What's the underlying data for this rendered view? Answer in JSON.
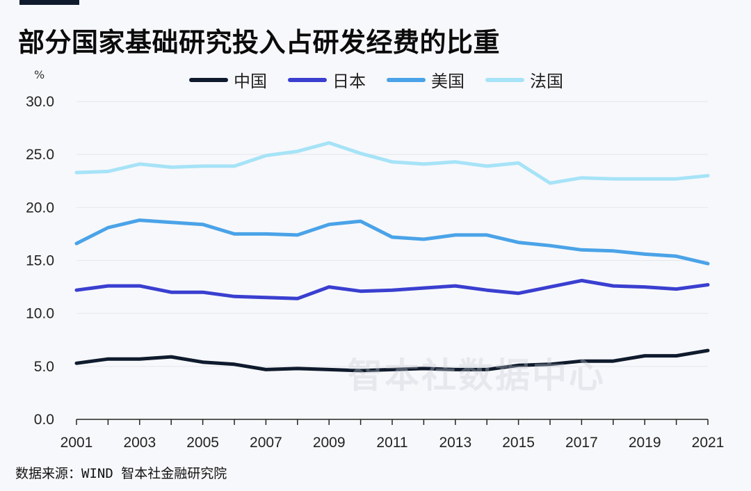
{
  "header": {
    "title": "部分国家基础研究投入占研发经费的比重",
    "unit": "%"
  },
  "watermark": "智本社数据中心",
  "source": "数据来源：WIND 智本社金融研究院",
  "colors": {
    "china": "#0f1b2d",
    "japan": "#3a3fd0",
    "usa": "#4aa3e8",
    "france": "#a6e3f7",
    "grid": "#e4e6ea",
    "axis": "#222222"
  },
  "chart_data": {
    "type": "line",
    "title": "部分国家基础研究投入占研发经费的比重",
    "ylabel": "%",
    "xlabel": "",
    "ylim": [
      0,
      30
    ],
    "yticks": [
      "0.0",
      "5.0",
      "10.0",
      "15.0",
      "20.0",
      "25.0",
      "30.0"
    ],
    "xtick_labels": [
      "2001",
      "2003",
      "2005",
      "2007",
      "2009",
      "2011",
      "2013",
      "2015",
      "2017",
      "2019",
      "2021"
    ],
    "x": [
      2001,
      2002,
      2003,
      2004,
      2005,
      2006,
      2007,
      2008,
      2009,
      2010,
      2011,
      2012,
      2013,
      2014,
      2015,
      2016,
      2017,
      2018,
      2019,
      2020,
      2021
    ],
    "grid": true,
    "legend_position": "top",
    "series": [
      {
        "name": "中国",
        "color": "#0f1b2d",
        "values": [
          5.3,
          5.7,
          5.7,
          5.9,
          5.4,
          5.2,
          4.7,
          4.8,
          4.7,
          4.6,
          4.7,
          4.8,
          4.7,
          4.7,
          5.1,
          5.2,
          5.5,
          5.5,
          6.0,
          6.0,
          6.5
        ]
      },
      {
        "name": "日本",
        "color": "#3a3fd0",
        "values": [
          12.2,
          12.6,
          12.6,
          12.0,
          12.0,
          11.6,
          11.5,
          11.4,
          12.5,
          12.1,
          12.2,
          12.4,
          12.6,
          12.2,
          11.9,
          12.5,
          13.1,
          12.6,
          12.5,
          12.3,
          12.7
        ]
      },
      {
        "name": "美国",
        "color": "#4aa3e8",
        "values": [
          16.6,
          18.1,
          18.8,
          18.6,
          18.4,
          17.5,
          17.5,
          17.4,
          18.4,
          18.7,
          17.2,
          17.0,
          17.4,
          17.4,
          16.7,
          16.4,
          16.0,
          15.9,
          15.6,
          15.4,
          14.7
        ]
      },
      {
        "name": "法国",
        "color": "#a6e3f7",
        "values": [
          23.3,
          23.4,
          24.1,
          23.8,
          23.9,
          23.9,
          24.9,
          25.3,
          26.1,
          25.1,
          24.3,
          24.1,
          24.3,
          23.9,
          24.2,
          22.3,
          22.8,
          22.7,
          22.7,
          22.7,
          23.0
        ]
      }
    ]
  }
}
